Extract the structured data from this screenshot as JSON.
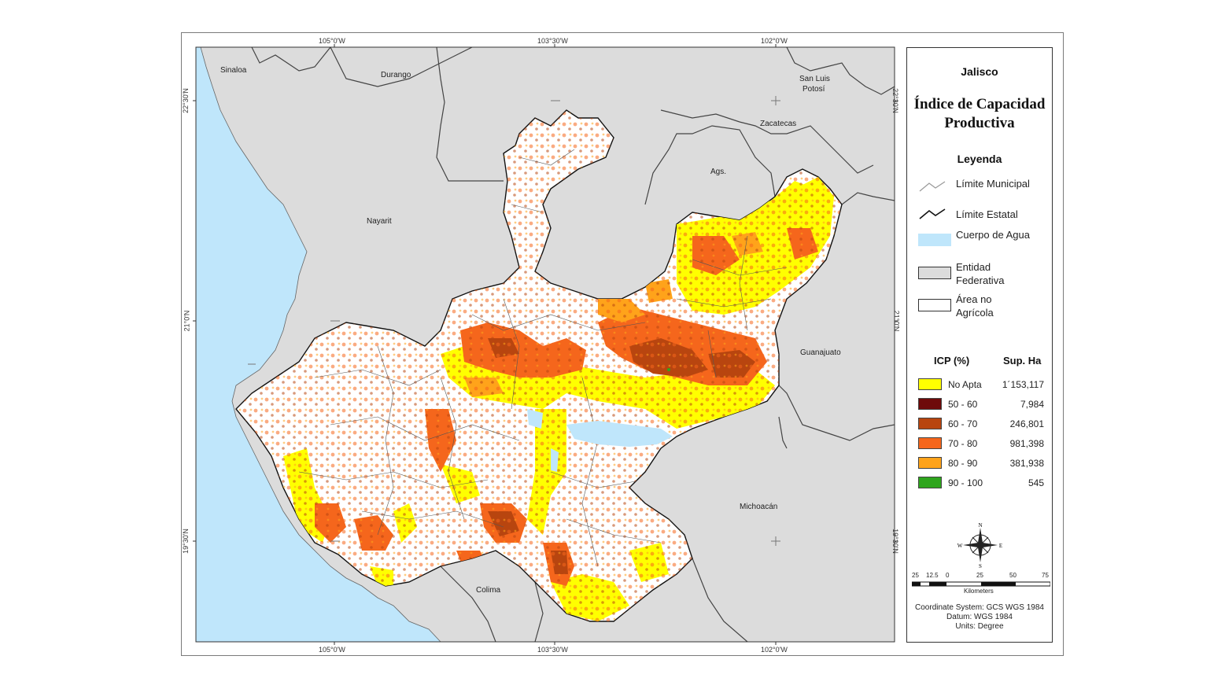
{
  "map": {
    "coords_top": [
      "105°0'W",
      "103°30'W",
      "102°0'W"
    ],
    "coords_bottom": [
      "105°0'W",
      "103°30'W",
      "102°0'W"
    ],
    "coords_left": [
      "22°30'N",
      "21°0'N",
      "19°30'N"
    ],
    "coords_right": [
      "22°30'N",
      "21°0'N",
      "19°30'N"
    ],
    "state_labels": {
      "sinaloa": "Sinaloa",
      "durango": "Durango",
      "san_luis_1": "San Luis",
      "san_luis_2": "Potosí",
      "zacatecas": "Zacatecas",
      "nayarit": "Nayarit",
      "ags": "Ags.",
      "guanajuato": "Guanajuato",
      "michoacan": "Michoacán",
      "colima": "Colima"
    },
    "colors": {
      "water": "#bfe6fb",
      "entity": "#dcdcdc",
      "non_agri": "#ffffff",
      "no_apta": "#ffff00",
      "c50_60": "#6e0a0a",
      "c60_70": "#b8450f",
      "c70_80": "#f5661c",
      "c80_90": "#ffa31a",
      "c90_100": "#2ea51d"
    }
  },
  "legend": {
    "region": "Jalisco",
    "title_line1": "Índice de Capacidad",
    "title_line2": "Productiva",
    "heading": "Leyenda",
    "items": {
      "municipal": "Límite Municipal",
      "estatal": "Límite Estatal",
      "agua": "Cuerpo de Agua",
      "entidad_1": "Entidad",
      "entidad_2": "Federativa",
      "noagri_1": "Área no",
      "noagri_2": "Agrícola"
    },
    "icp_header": "ICP (%)",
    "ha_header": "Sup. Ha",
    "classes": [
      {
        "range": "No Apta",
        "ha": "1´153,117",
        "color": "#ffff00"
      },
      {
        "range": "50 - 60",
        "ha": "7,984",
        "color": "#6e0a0a"
      },
      {
        "range": "60 - 70",
        "ha": "246,801",
        "color": "#b8450f"
      },
      {
        "range": "70 - 80",
        "ha": "981,398",
        "color": "#f5661c"
      },
      {
        "range": "80 - 90",
        "ha": "381,938",
        "color": "#ffa31a"
      },
      {
        "range": "90 - 100",
        "ha": "545",
        "color": "#2ea51d"
      }
    ],
    "compass": {
      "n": "N",
      "s": "S",
      "e": "E",
      "w": "W"
    },
    "scale_ticks": [
      "25",
      "12.5",
      "0",
      "25",
      "50",
      "75"
    ],
    "scale_unit": "Kilometers",
    "footer": {
      "line1": "Coordinate System: GCS WGS 1984",
      "line2": "Datum: WGS 1984",
      "line3": "Units: Degree"
    }
  }
}
